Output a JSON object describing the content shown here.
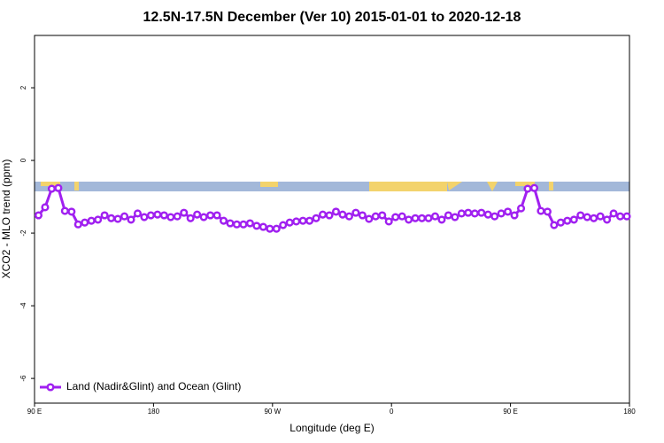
{
  "chart_data": {
    "type": "line",
    "title": "12.5N-17.5N December (Ver 10)   2015-01-01 to 2020-12-18",
    "x_label": "Longitude (deg E)",
    "y_label": "XCO2 - MLO trend (ppm)",
    "xlim": [
      90,
      540
    ],
    "xticks": [
      {
        "value": 90,
        "label": "90 E"
      },
      180,
      {
        "value": 270,
        "label": "90 W"
      },
      {
        "value": 360,
        "label": "0"
      },
      {
        "value": 450,
        "label": "90 E"
      },
      {
        "value": 540,
        "label": "180"
      }
    ],
    "ylim": [
      -6.68,
      3.44
    ],
    "yticks": [
      -6,
      -4,
      -2,
      0,
      2
    ],
    "legend": "bottom-left",
    "x": [
      93,
      98,
      103,
      108,
      113,
      118,
      123,
      128,
      133,
      138,
      143,
      148,
      153,
      158,
      163,
      168,
      173,
      178,
      183,
      188,
      193,
      198,
      203,
      208,
      213,
      218,
      223,
      228,
      233,
      238,
      243,
      248,
      253,
      258,
      263,
      268,
      273,
      278,
      283,
      288,
      293,
      298,
      303,
      308,
      313,
      318,
      323,
      328,
      333,
      338,
      343,
      348,
      353,
      358,
      363,
      368,
      373,
      378,
      383,
      388,
      393,
      398,
      403,
      408,
      413,
      418,
      423,
      428,
      433,
      438,
      443,
      448,
      453,
      458,
      463,
      468,
      473,
      478,
      483,
      488,
      493,
      498,
      503,
      508,
      513,
      518,
      523,
      528,
      533,
      538
    ],
    "series": [
      {
        "name": "Land (Nadir&Glint) and Ocean (Glint)",
        "color": "#a020f0",
        "values": [
          -1.51,
          -1.29,
          -0.78,
          -0.76,
          -1.39,
          -1.41,
          -1.76,
          -1.71,
          -1.66,
          -1.63,
          -1.51,
          -1.59,
          -1.61,
          -1.54,
          -1.63,
          -1.46,
          -1.56,
          -1.51,
          -1.49,
          -1.51,
          -1.56,
          -1.54,
          -1.44,
          -1.59,
          -1.49,
          -1.56,
          -1.51,
          -1.51,
          -1.66,
          -1.73,
          -1.76,
          -1.76,
          -1.73,
          -1.8,
          -1.83,
          -1.88,
          -1.88,
          -1.78,
          -1.71,
          -1.68,
          -1.66,
          -1.66,
          -1.59,
          -1.49,
          -1.51,
          -1.41,
          -1.49,
          -1.54,
          -1.44,
          -1.51,
          -1.61,
          -1.54,
          -1.51,
          -1.68,
          -1.56,
          -1.54,
          -1.63,
          -1.59,
          -1.59,
          -1.59,
          -1.54,
          -1.63,
          -1.51,
          -1.56,
          -1.46,
          -1.44,
          -1.46,
          -1.44,
          -1.49,
          -1.54,
          -1.46,
          -1.41,
          -1.51,
          -1.32,
          -0.78,
          -0.76,
          -1.39,
          -1.41,
          -1.78,
          -1.71,
          -1.66,
          -1.63,
          -1.51,
          -1.56,
          -1.59,
          -1.54,
          -1.63,
          -1.46,
          -1.54,
          -1.54
        ]
      }
    ]
  }
}
